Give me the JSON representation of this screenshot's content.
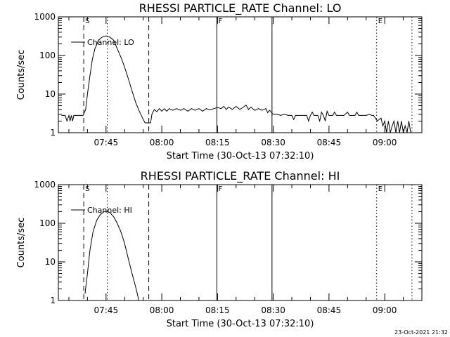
{
  "chart_data": [
    {
      "type": "line",
      "title": "RHESSI PARTICLE_RATE Channel: LO",
      "xlabel": "Start Time (30-Oct-13 07:32:10)",
      "ylabel": "Counts/sec",
      "y_scale": "log",
      "ylim": [
        1,
        1000
      ],
      "xlim": [
        "07:32:10",
        "09:10:00"
      ],
      "yticks": [
        "1",
        "10",
        "100",
        "1000"
      ],
      "xticks": [
        "07:45",
        "08:00",
        "08:15",
        "08:30",
        "08:45",
        "09:00"
      ],
      "legend": {
        "position": "top-left",
        "label": "Channel: LO"
      },
      "markers": [
        {
          "label": "S",
          "time": "07:39:00",
          "style": "dashed"
        },
        {
          "label": "",
          "time": "07:45:20",
          "style": "dotted"
        },
        {
          "label": "",
          "time": "07:56:30",
          "style": "dashed"
        },
        {
          "label": "F",
          "time": "08:14:50",
          "style": "solid"
        },
        {
          "label": "",
          "time": "08:29:40",
          "style": "solid"
        },
        {
          "label": "E",
          "time": "08:57:50",
          "style": "dotted"
        },
        {
          "label": "",
          "time": "09:07:20",
          "style": "dotted"
        }
      ],
      "series": [
        {
          "name": "Channel: LO",
          "points": [
            [
              "07:33:00",
              2.8
            ],
            [
              "07:34:00",
              2.8
            ],
            [
              "07:34:30",
              2.0
            ],
            [
              "07:35:00",
              2.8
            ],
            [
              "07:35:20",
              2.0
            ],
            [
              "07:35:40",
              2.8
            ],
            [
              "07:36:00",
              2.0
            ],
            [
              "07:36:20",
              2.8
            ],
            [
              "07:38:50",
              2.8
            ],
            [
              "07:39:30",
              4.0
            ],
            [
              "07:40:00",
              10
            ],
            [
              "07:40:40",
              30
            ],
            [
              "07:41:20",
              80
            ],
            [
              "07:42:00",
              150
            ],
            [
              "07:43:00",
              250
            ],
            [
              "07:44:00",
              300
            ],
            [
              "07:45:00",
              320
            ],
            [
              "07:46:00",
              300
            ],
            [
              "07:47:00",
              250
            ],
            [
              "07:48:00",
              150
            ],
            [
              "07:49:00",
              90
            ],
            [
              "07:50:00",
              50
            ],
            [
              "07:51:00",
              25
            ],
            [
              "07:52:00",
              12
            ],
            [
              "07:53:00",
              6
            ],
            [
              "07:54:00",
              3.5
            ],
            [
              "07:55:00",
              2.2
            ],
            [
              "07:55:30",
              1.8
            ],
            [
              "07:57:00",
              1.8
            ],
            [
              "07:57:20",
              3.0
            ],
            [
              "07:58:00",
              4.0
            ],
            [
              "07:58:40",
              3.5
            ],
            [
              "07:59:20",
              4.2
            ],
            [
              "08:00:00",
              3.6
            ],
            [
              "08:00:40",
              4.2
            ],
            [
              "08:01:20",
              3.6
            ],
            [
              "08:02:00",
              4.2
            ],
            [
              "08:03:00",
              3.8
            ],
            [
              "08:04:00",
              4.2
            ],
            [
              "08:05:00",
              3.8
            ],
            [
              "08:06:00",
              4.2
            ],
            [
              "08:07:00",
              3.6
            ],
            [
              "08:08:00",
              4.2
            ],
            [
              "08:09:00",
              3.8
            ],
            [
              "08:10:00",
              4.2
            ],
            [
              "08:11:00",
              3.6
            ],
            [
              "08:12:00",
              4.2
            ],
            [
              "08:13:00",
              3.9
            ],
            [
              "08:14:00",
              4.2
            ],
            [
              "08:15:00",
              4.5
            ],
            [
              "08:16:00",
              4.2
            ],
            [
              "08:16:40",
              4.8
            ],
            [
              "08:17:20",
              4.0
            ],
            [
              "08:18:00",
              4.6
            ],
            [
              "08:19:00",
              4.0
            ],
            [
              "08:20:00",
              4.8
            ],
            [
              "08:21:00",
              4.0
            ],
            [
              "08:22:00",
              4.6
            ],
            [
              "08:22:40",
              5.2
            ],
            [
              "08:23:20",
              4.0
            ],
            [
              "08:24:00",
              4.6
            ],
            [
              "08:25:00",
              3.8
            ],
            [
              "08:26:00",
              4.2
            ],
            [
              "08:27:00",
              3.8
            ],
            [
              "08:28:00",
              4.2
            ],
            [
              "08:28:30",
              3.3
            ],
            [
              "08:29:00",
              3.8
            ],
            [
              "08:30:00",
              3.0
            ],
            [
              "08:31:00",
              3.0
            ],
            [
              "08:32:00",
              2.8
            ],
            [
              "08:33:00",
              3.0
            ],
            [
              "08:34:00",
              2.8
            ],
            [
              "08:35:00",
              2.8
            ],
            [
              "08:35:30",
              2.2
            ],
            [
              "08:36:00",
              2.8
            ],
            [
              "08:37:00",
              2.8
            ],
            [
              "08:38:00",
              2.8
            ],
            [
              "08:39:00",
              2.8
            ],
            [
              "08:39:30",
              2.0
            ],
            [
              "08:40:00",
              2.8
            ],
            [
              "08:40:30",
              3.4
            ],
            [
              "08:41:00",
              2.8
            ],
            [
              "08:42:00",
              2.8
            ],
            [
              "08:42:30",
              2.0
            ],
            [
              "08:43:00",
              3.4
            ],
            [
              "08:43:30",
              2.8
            ],
            [
              "08:44:00",
              2.0
            ],
            [
              "08:44:30",
              3.6
            ],
            [
              "08:45:00",
              2.8
            ],
            [
              "08:46:00",
              2.8
            ],
            [
              "08:46:30",
              3.4
            ],
            [
              "08:47:00",
              2.8
            ],
            [
              "08:48:00",
              2.8
            ],
            [
              "08:49:00",
              2.8
            ],
            [
              "08:50:00",
              3.4
            ],
            [
              "08:50:30",
              2.8
            ],
            [
              "08:52:00",
              2.8
            ],
            [
              "08:52:30",
              3.4
            ],
            [
              "08:53:00",
              2.8
            ],
            [
              "08:55:00",
              2.8
            ],
            [
              "08:56:00",
              3.0
            ],
            [
              "08:56:30",
              2.8
            ],
            [
              "08:57:00",
              2.8
            ],
            [
              "08:58:00",
              2.0
            ],
            [
              "08:59:00",
              2.4
            ],
            [
              "08:59:30",
              1.5
            ],
            [
              "09:00:00",
              2.0
            ],
            [
              "09:00:30",
              1.0
            ],
            [
              "09:01:00",
              2.0
            ],
            [
              "09:01:30",
              1.0
            ],
            [
              "09:02:00",
              1.5
            ],
            [
              "09:02:30",
              2.0
            ],
            [
              "09:03:00",
              1.0
            ],
            [
              "09:03:30",
              2.0
            ],
            [
              "09:04:00",
              1.0
            ],
            [
              "09:04:30",
              2.0
            ],
            [
              "09:05:00",
              1.0
            ],
            [
              "09:05:30",
              1.5
            ],
            [
              "09:06:00",
              1.0
            ],
            [
              "09:06:30",
              2.0
            ],
            [
              "09:07:00",
              1.0
            ]
          ]
        }
      ]
    },
    {
      "type": "line",
      "title": "RHESSI PARTICLE_RATE Channel: HI",
      "xlabel": "Start Time (30-Oct-13 07:32:10)",
      "ylabel": "Counts/sec",
      "y_scale": "log",
      "ylim": [
        1,
        1000
      ],
      "xlim": [
        "07:32:10",
        "09:10:00"
      ],
      "yticks": [
        "1",
        "10",
        "100",
        "1000"
      ],
      "xticks": [
        "07:45",
        "08:00",
        "08:15",
        "08:30",
        "08:45",
        "09:00"
      ],
      "legend": {
        "position": "top-left",
        "label": "Channel: HI"
      },
      "markers": [
        {
          "label": "S",
          "time": "07:39:00",
          "style": "dashed"
        },
        {
          "label": "",
          "time": "07:45:20",
          "style": "dotted"
        },
        {
          "label": "",
          "time": "07:56:30",
          "style": "dashed"
        },
        {
          "label": "F",
          "time": "08:14:50",
          "style": "solid"
        },
        {
          "label": "",
          "time": "08:29:40",
          "style": "solid"
        },
        {
          "label": "E",
          "time": "08:57:50",
          "style": "dotted"
        },
        {
          "label": "",
          "time": "09:07:20",
          "style": "dotted"
        }
      ],
      "series": [
        {
          "name": "Channel: HI",
          "points": [
            [
              "07:39:20",
              1.5
            ],
            [
              "07:40:00",
              5
            ],
            [
              "07:40:40",
              20
            ],
            [
              "07:41:30",
              60
            ],
            [
              "07:42:30",
              120
            ],
            [
              "07:43:30",
              170
            ],
            [
              "07:44:30",
              200
            ],
            [
              "07:45:00",
              205
            ],
            [
              "07:46:00",
              190
            ],
            [
              "07:47:00",
              150
            ],
            [
              "07:48:00",
              100
            ],
            [
              "07:49:00",
              60
            ],
            [
              "07:50:00",
              30
            ],
            [
              "07:51:00",
              12
            ],
            [
              "07:52:00",
              5
            ],
            [
              "07:53:00",
              2.2
            ],
            [
              "07:53:50",
              1.0
            ]
          ]
        }
      ]
    }
  ],
  "footer": {
    "timestamp": "23-Oct-2021 21:32"
  }
}
